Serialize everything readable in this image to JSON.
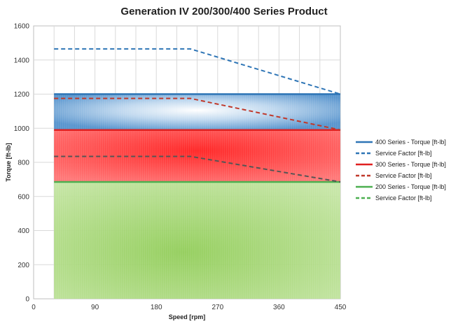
{
  "chart_data": {
    "type": "area",
    "title": "Generation IV 200/300/400 Series Product",
    "xlabel": "Speed [rpm]",
    "ylabel": "Torque [ft-lb]",
    "xlim": [
      0,
      450
    ],
    "ylim": [
      0,
      1600
    ],
    "xticks": [
      0,
      90,
      180,
      270,
      360,
      450
    ],
    "yticks": [
      0,
      200,
      400,
      600,
      800,
      1000,
      1200,
      1400,
      1600
    ],
    "grid": true,
    "legend_position": "right",
    "series": [
      {
        "name": "400 Series - Torque [ft-lb]",
        "style": "solid",
        "color": "#2e75b6",
        "fill_color": "#5b9bd5",
        "fill_base": 990,
        "x": [
          30,
          450
        ],
        "y": [
          1200,
          1200
        ]
      },
      {
        "name": "Service Factor [ft-lb]",
        "style": "dashed",
        "color": "#2e75b6",
        "x": [
          30,
          230,
          450
        ],
        "y": [
          1465,
          1465,
          1200
        ]
      },
      {
        "name": "300 Series - Torque [ft-lb]",
        "style": "solid",
        "color": "#e02020",
        "fill_color": "#ff4d4d",
        "fill_base": 685,
        "x": [
          30,
          450
        ],
        "y": [
          990,
          990
        ]
      },
      {
        "name": "Service Factor [ft-lb]",
        "style": "dashed",
        "color": "#c0392b",
        "x": [
          30,
          230,
          450
        ],
        "y": [
          1175,
          1175,
          990
        ]
      },
      {
        "name": "200 Series - Torque [ft-lb]",
        "style": "solid",
        "color": "#4caf50",
        "fill_color": "#a5d67a",
        "fill_base": 0,
        "x": [
          30,
          450
        ],
        "y": [
          685,
          685
        ]
      },
      {
        "name": "Service Factor [ft-lb]",
        "style": "dashed",
        "color": "#555555",
        "x": [
          30,
          230,
          450
        ],
        "y": [
          835,
          835,
          685
        ]
      }
    ],
    "legend": [
      {
        "label": "400 Series - Torque [ft-lb]",
        "style": "solid",
        "color": "#2e75b6"
      },
      {
        "label": "Service Factor [ft-lb]",
        "style": "dashed",
        "color": "#2e75b6"
      },
      {
        "label": "300 Series - Torque [ft-lb]",
        "style": "solid",
        "color": "#e02020"
      },
      {
        "label": "Service Factor [ft-lb]",
        "style": "dashed",
        "color": "#c0392b"
      },
      {
        "label": "200 Series - Torque [ft-lb]",
        "style": "solid",
        "color": "#4caf50"
      },
      {
        "label": "Service Factor [ft-lb]",
        "style": "dashed",
        "color": "#4caf50"
      }
    ]
  }
}
